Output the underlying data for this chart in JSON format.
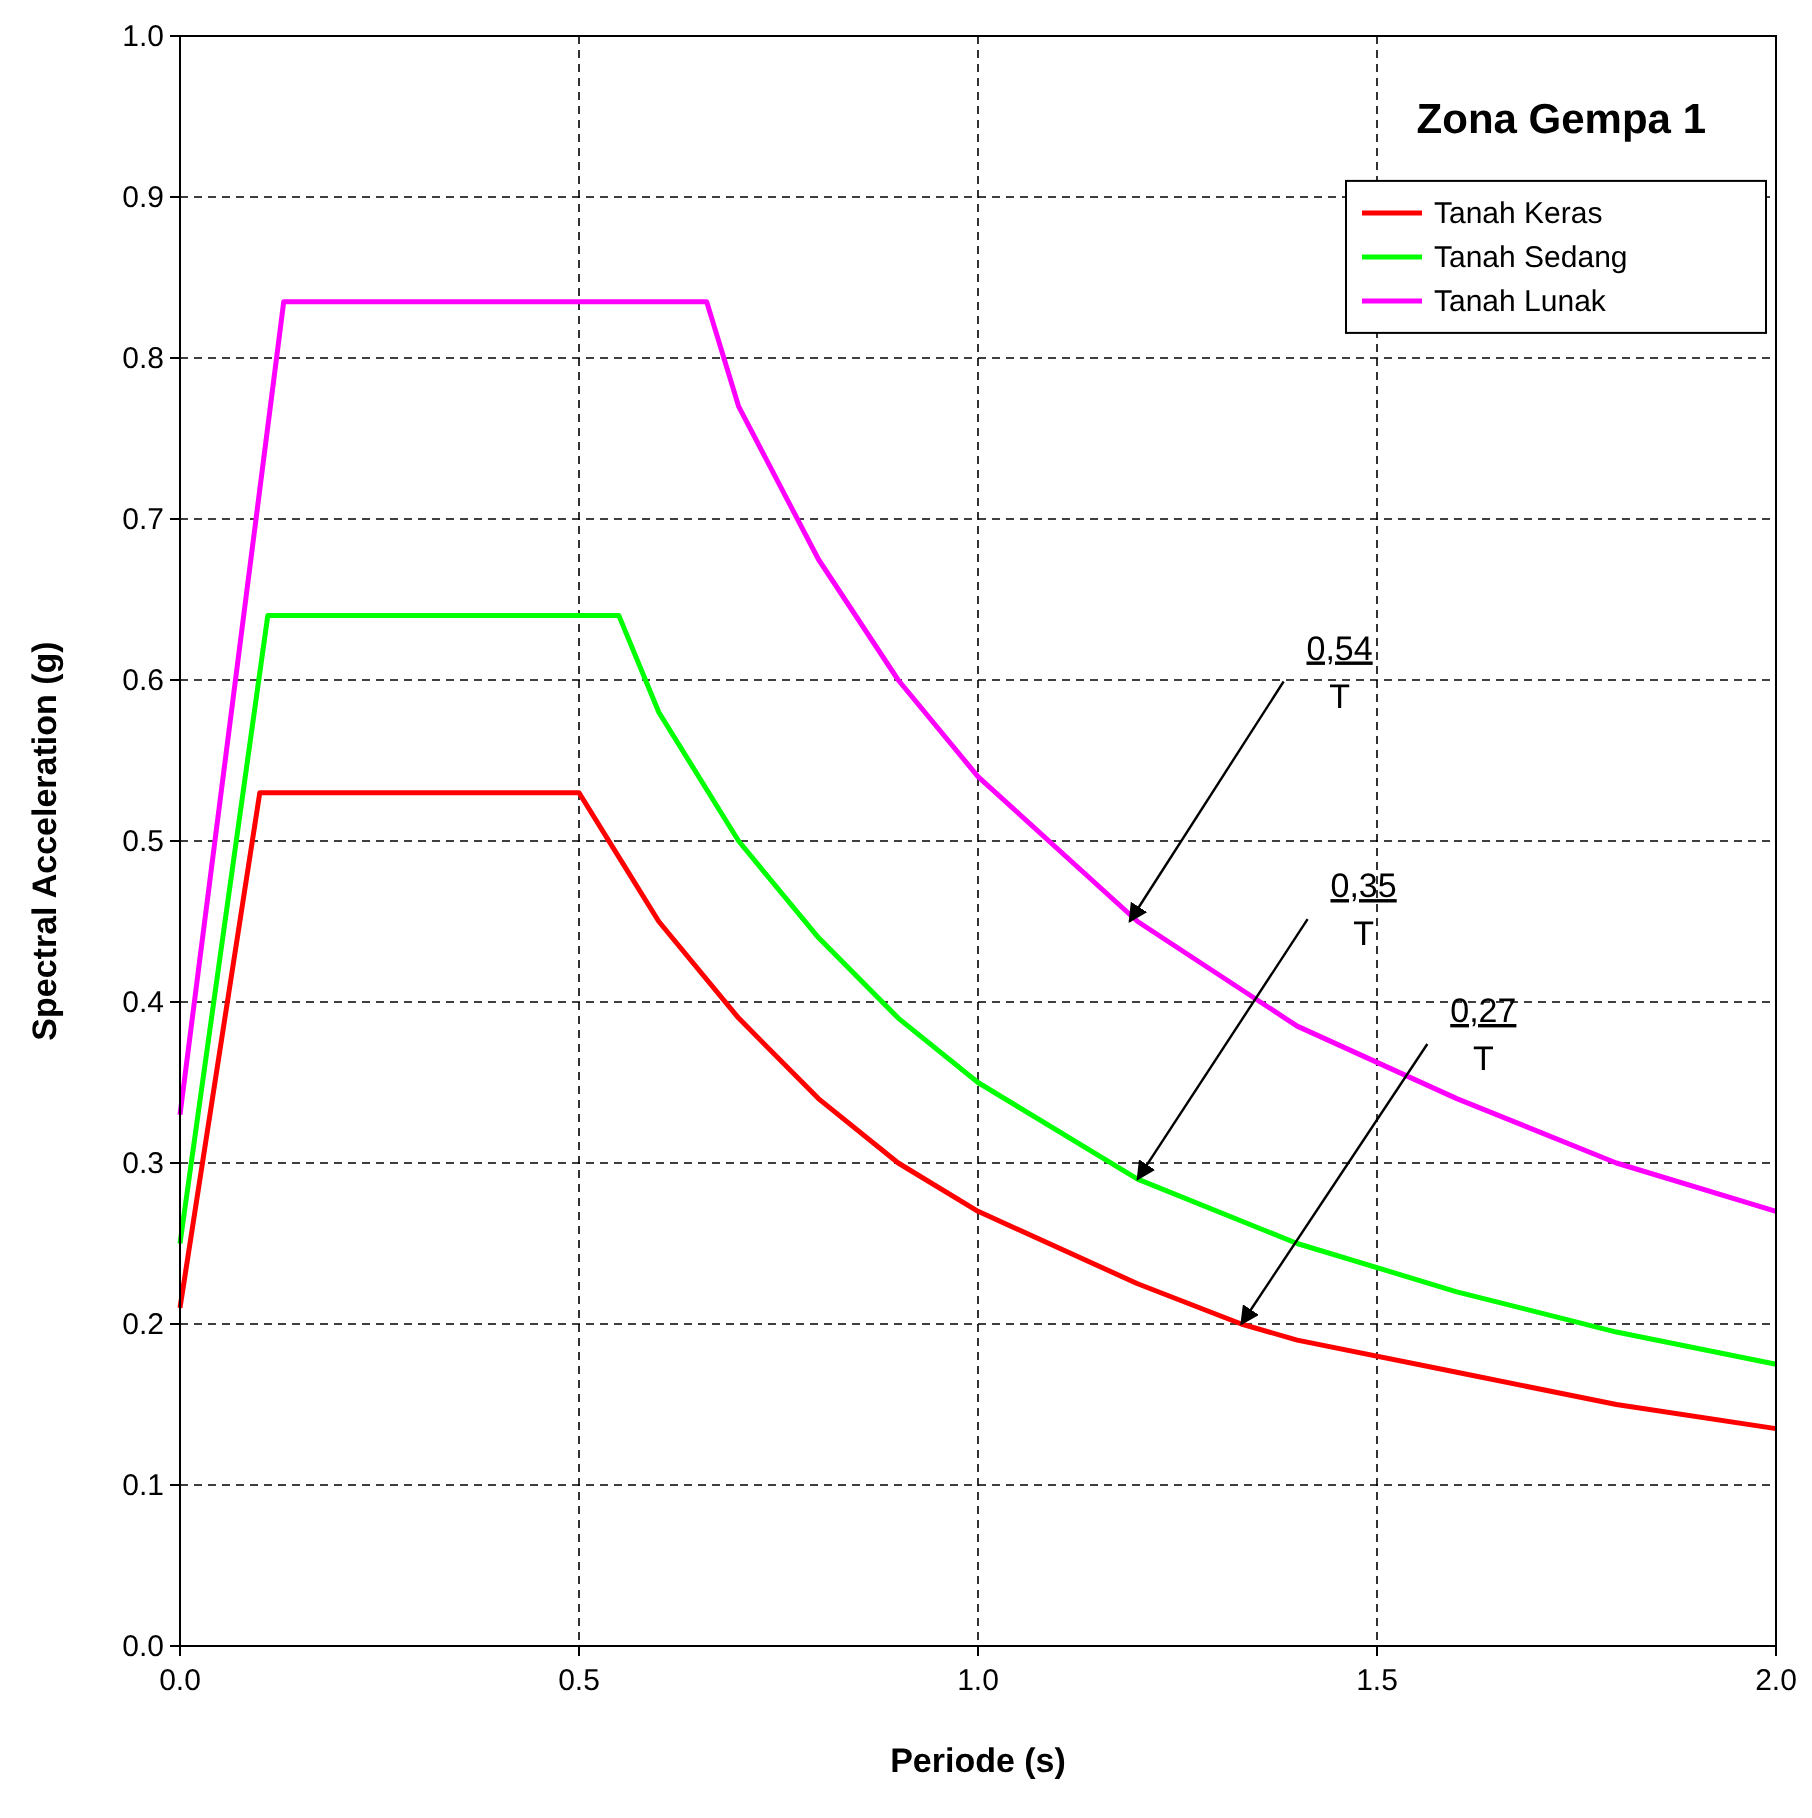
{
  "chart_data": {
    "type": "line",
    "title": "Zona Gempa 1",
    "xlabel": "Periode (s)",
    "ylabel": "Spectral Acceleration (g)",
    "xlim": [
      0,
      2
    ],
    "xticks": [
      {
        "value": 0,
        "label": "0.0"
      },
      0.5,
      {
        "value": 1,
        "label": "1.0"
      },
      1.5,
      {
        "value": 2,
        "label": "2.0"
      }
    ],
    "ylim": [
      0,
      1
    ],
    "yticks": [
      {
        "value": 0,
        "label": "0.0"
      },
      0.1,
      0.2,
      0.3,
      0.4,
      0.5,
      0.6,
      0.7,
      0.8,
      0.9,
      {
        "value": 1,
        "label": "1.0"
      }
    ],
    "grid": true,
    "legend": "top right",
    "line_style": "solid",
    "marker": "none",
    "series": [
      {
        "name": "Tanah Keras",
        "color": "#ff0000",
        "x": [
          0,
          0.1,
          0.5,
          0.55,
          0.6,
          0.7,
          0.8,
          0.9,
          1.0,
          1.2,
          1.33,
          1.4,
          1.6,
          1.8,
          2.0
        ],
        "values": [
          0.21,
          0.53,
          0.53,
          0.49,
          0.45,
          0.39,
          0.34,
          0.3,
          0.27,
          0.225,
          0.2,
          0.19,
          0.17,
          0.15,
          0.135
        ]
      },
      {
        "name": "Tanah Sedang",
        "color": "#00ff00",
        "x": [
          0,
          0.11,
          0.55,
          0.6,
          0.7,
          0.8,
          0.9,
          1.0,
          1.2,
          1.4,
          1.6,
          1.8,
          2.0
        ],
        "values": [
          0.25,
          0.64,
          0.64,
          0.58,
          0.5,
          0.44,
          0.39,
          0.35,
          0.29,
          0.25,
          0.22,
          0.195,
          0.175
        ]
      },
      {
        "name": "Tanah Lunak",
        "color": "#ff00ff",
        "x": [
          0,
          0.13,
          0.66,
          0.7,
          0.8,
          0.9,
          1.0,
          1.2,
          1.4,
          1.6,
          1.8,
          2.0
        ],
        "values": [
          0.33,
          0.835,
          0.835,
          0.77,
          0.675,
          0.6,
          0.54,
          0.45,
          0.385,
          0.34,
          0.3,
          0.27
        ]
      }
    ],
    "annotations": [
      {
        "text": "0,54\nT",
        "x": 1.19,
        "y": 0.45
      },
      {
        "text": "0,35\nT",
        "x": 1.2,
        "y": 0.29
      },
      {
        "text": "0,27\nT",
        "x": 1.33,
        "y": 0.2
      }
    ]
  }
}
